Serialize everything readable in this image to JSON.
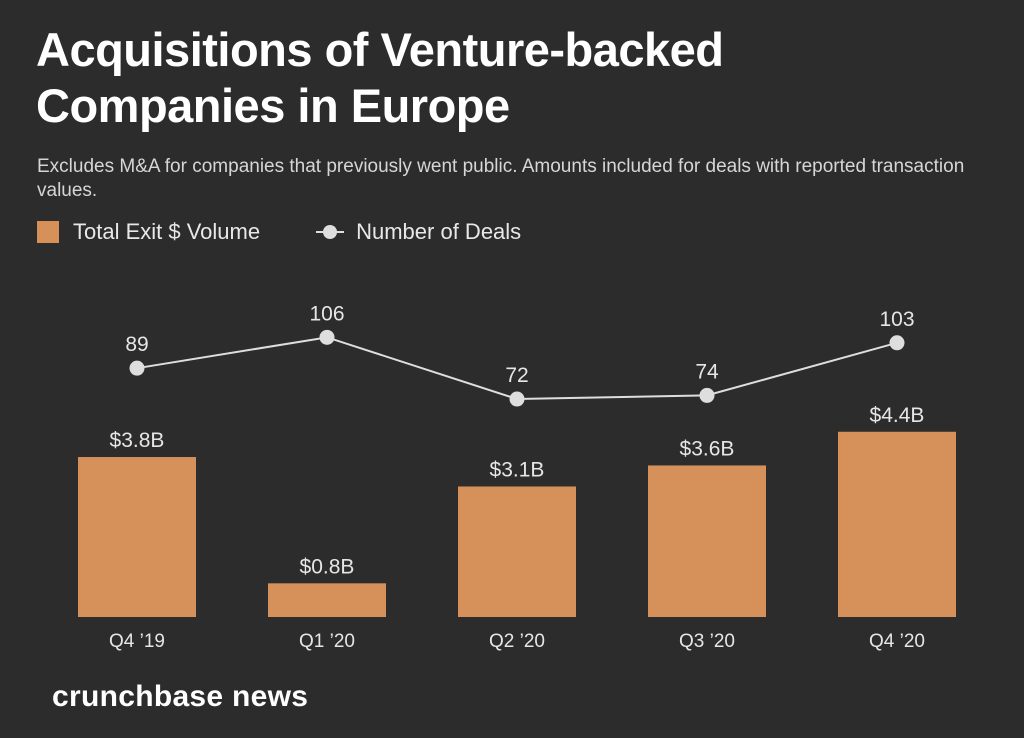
{
  "title": "Acquisitions of Venture-backed Companies in Europe",
  "subtitle": "Excludes M&A for companies that previously went public. Amounts included for deals with reported transaction values.",
  "legend": {
    "bars": "Total Exit $ Volume",
    "line": "Number of Deals"
  },
  "brand": "crunchbase news",
  "colors": {
    "background": "#2c2c2c",
    "bar": "#d6915a",
    "line": "#dedede",
    "text": "#ffffff",
    "label": "#e6e6e6"
  },
  "chart_data": {
    "type": "bar",
    "title": "Acquisitions of Venture-backed Companies in Europe",
    "categories": [
      "Q4 ’19",
      "Q1 ’20",
      "Q2 ’20",
      "Q3 ’20",
      "Q4 ’20"
    ],
    "series": [
      {
        "name": "Total Exit $ Volume",
        "type": "bar",
        "values": [
          3.8,
          0.8,
          3.1,
          3.6,
          4.4
        ],
        "labels": [
          "$3.8B",
          "$0.8B",
          "$3.1B",
          "$3.6B",
          "$4.4B"
        ],
        "unit": "$B"
      },
      {
        "name": "Number of Deals",
        "type": "line",
        "values": [
          89,
          106,
          72,
          74,
          103
        ],
        "labels": [
          "89",
          "106",
          "72",
          "74",
          "103"
        ]
      }
    ],
    "xlabel": "",
    "ylabel": "",
    "grid": false,
    "legend_position": "top-left"
  }
}
